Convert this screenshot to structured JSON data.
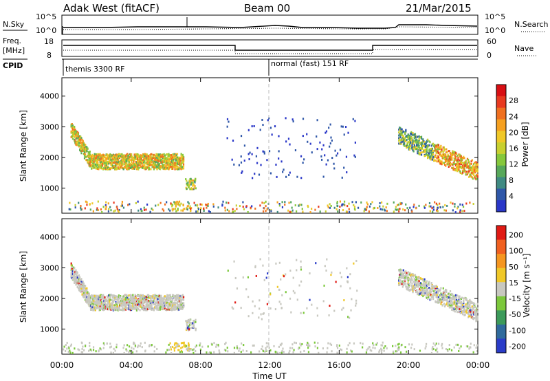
{
  "header": {
    "station": "Adak West (fitACF)",
    "beam": "Beam 00",
    "date": "21/Mar/2015"
  },
  "top_panels": {
    "noise_left_label": "N.Sky",
    "noise_right_label": "N.Search",
    "noise_left_ticks": [
      "10^5",
      "10^0"
    ],
    "noise_right_ticks": [
      "10^5",
      "10^0"
    ],
    "freq_label_line1": "Freq.",
    "freq_label_line2": "[MHz]",
    "freq_ticks": [
      "18",
      "8"
    ],
    "nave_label": "Nave",
    "nave_ticks": [
      "60",
      "0"
    ],
    "cpid_label": "CPID",
    "cpid_left": "themis 3300 RF",
    "cpid_right": "normal (fast) 151 RF"
  },
  "x_axis": {
    "label": "Time UT",
    "ticks": [
      "00:00",
      "04:00",
      "08:00",
      "12:00",
      "16:00",
      "20:00",
      "00:00"
    ]
  },
  "chart_data": [
    {
      "type": "heatmap",
      "title": "",
      "xlabel": "Time UT",
      "ylabel": "Slant Range [km]",
      "xlim": [
        0,
        24
      ],
      "ylim": [
        180,
        4600
      ],
      "yticks": [
        "1000",
        "2000",
        "3000",
        "4000"
      ],
      "colorbar": {
        "label": "Power [dB]",
        "ticks": [
          "4",
          "8",
          "12",
          "16",
          "20",
          "24",
          "28"
        ],
        "colors": [
          "#2a37c8",
          "#2f57a8",
          "#3f8a82",
          "#57a85a",
          "#86c83c",
          "#c8d030",
          "#f0c828",
          "#f5a020",
          "#f07020",
          "#e83a20",
          "#d80f14"
        ]
      }
    },
    {
      "type": "heatmap",
      "title": "",
      "xlabel": "Time UT",
      "ylabel": "Slant Range [km]",
      "xlim": [
        0,
        24
      ],
      "ylim": [
        180,
        4600
      ],
      "yticks": [
        "1000",
        "2000",
        "3000",
        "4000"
      ],
      "colorbar": {
        "label": "Velocity [m s⁻¹]",
        "ticks": [
          "200",
          "100",
          "50",
          "15",
          "-15",
          "-50",
          "-100",
          "-200"
        ],
        "colors": [
          "#2a3cc8",
          "#2f6a9c",
          "#3c9a5a",
          "#7cc83c",
          "#c8c8c0",
          "#f0c828",
          "#f59620",
          "#f06020",
          "#e01a14"
        ]
      }
    }
  ]
}
